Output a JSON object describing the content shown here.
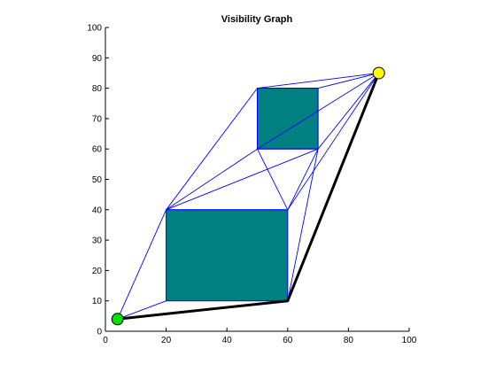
{
  "chart_data": {
    "type": "scatter",
    "title": "Visibility Graph",
    "xlabel": "",
    "ylabel": "",
    "xlim": [
      0,
      100
    ],
    "ylim": [
      0,
      100
    ],
    "xticks": [
      "0",
      "20",
      "40",
      "60",
      "80",
      "100"
    ],
    "yticks": [
      "0",
      "10",
      "20",
      "30",
      "40",
      "50",
      "60",
      "70",
      "80",
      "90",
      "100"
    ],
    "grid": false,
    "obstacles": [
      {
        "x0": 20,
        "y0": 10,
        "x1": 60,
        "y1": 40
      },
      {
        "x0": 50,
        "y0": 60,
        "x1": 70,
        "y1": 80
      }
    ],
    "start": {
      "x": 4,
      "y": 4
    },
    "goal": {
      "x": 90,
      "y": 85
    },
    "graph_edges": [
      [
        [
          4,
          4
        ],
        [
          20,
          10
        ]
      ],
      [
        [
          4,
          4
        ],
        [
          20,
          40
        ]
      ],
      [
        [
          4,
          4
        ],
        [
          60,
          10
        ]
      ],
      [
        [
          20,
          40
        ],
        [
          50,
          60
        ]
      ],
      [
        [
          20,
          40
        ],
        [
          50,
          80
        ]
      ],
      [
        [
          20,
          40
        ],
        [
          70,
          60
        ]
      ],
      [
        [
          20,
          40
        ],
        [
          60,
          40
        ]
      ],
      [
        [
          60,
          40
        ],
        [
          50,
          60
        ]
      ],
      [
        [
          60,
          40
        ],
        [
          70,
          60
        ]
      ],
      [
        [
          60,
          40
        ],
        [
          90,
          85
        ]
      ],
      [
        [
          60,
          10
        ],
        [
          70,
          60
        ]
      ],
      [
        [
          60,
          10
        ],
        [
          90,
          85
        ]
      ],
      [
        [
          50,
          60
        ],
        [
          90,
          85
        ]
      ],
      [
        [
          50,
          80
        ],
        [
          90,
          85
        ]
      ],
      [
        [
          70,
          80
        ],
        [
          90,
          85
        ]
      ],
      [
        [
          70,
          60
        ],
        [
          90,
          85
        ]
      ],
      [
        [
          50,
          80
        ],
        [
          50,
          60
        ]
      ],
      [
        [
          70,
          80
        ],
        [
          70,
          60
        ]
      ],
      [
        [
          50,
          80
        ],
        [
          70,
          80
        ]
      ],
      [
        [
          50,
          60
        ],
        [
          70,
          60
        ]
      ]
    ],
    "path": [
      [
        4,
        4
      ],
      [
        60,
        10
      ],
      [
        90,
        85
      ]
    ],
    "colors": {
      "obstacle": "#008080",
      "obstacle_edge": "#0000ff",
      "graph_edge": "#0000ff",
      "path": "#000000",
      "start": "#00e000",
      "goal": "#ffff00",
      "axis": "#000000"
    }
  }
}
